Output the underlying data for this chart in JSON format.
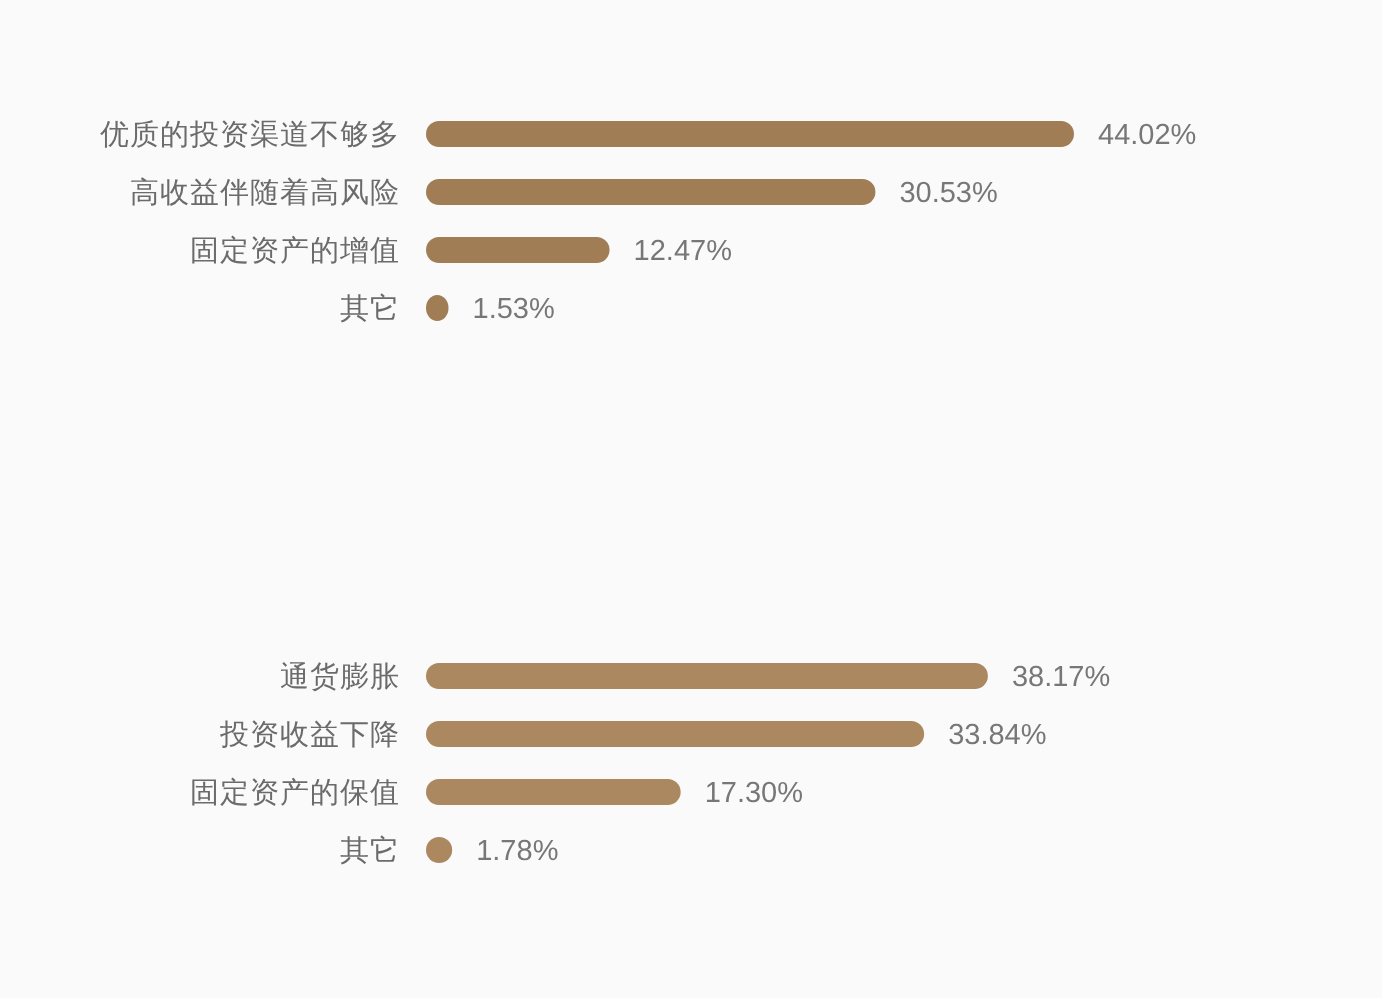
{
  "chart_data": [
    {
      "type": "bar",
      "orientation": "horizontal",
      "categories": [
        "优质的投资渠道不够多",
        "高收益伴随着高风险",
        "固定资产的增值",
        "其它"
      ],
      "values": [
        44.02,
        30.53,
        12.47,
        1.53
      ],
      "value_labels": [
        "44.02%",
        "30.53%",
        "12.47%",
        "1.53%"
      ],
      "color": "#a07d55"
    },
    {
      "type": "bar",
      "orientation": "horizontal",
      "categories": [
        "通货膨胀",
        "投资收益下降",
        "固定资产的保值",
        "其它"
      ],
      "values": [
        38.17,
        33.84,
        17.3,
        1.78
      ],
      "value_labels": [
        "38.17%",
        "33.84%",
        "17.30%",
        "1.78%"
      ],
      "color": "#ab8860"
    }
  ]
}
